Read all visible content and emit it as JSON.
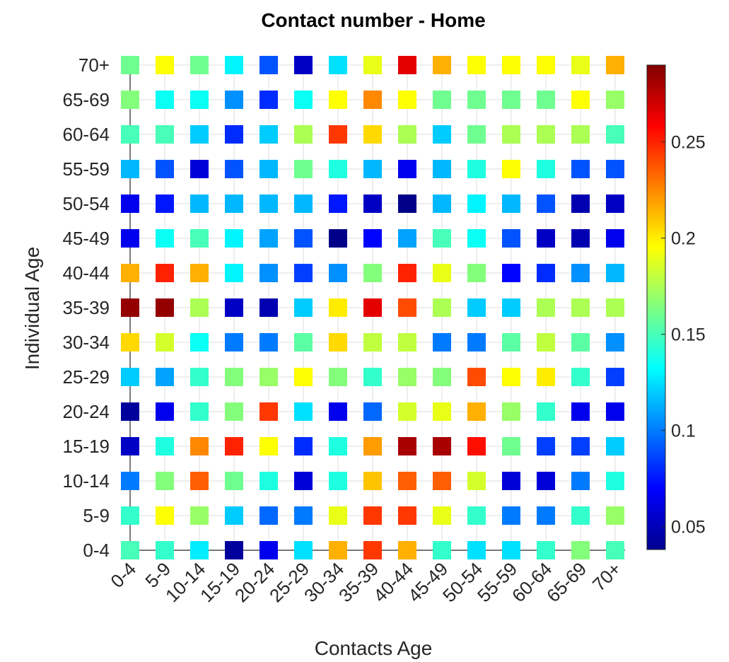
{
  "chart_data": {
    "type": "heatmap",
    "title": "Contact number - Home",
    "xlabel": "Contacts Age",
    "ylabel": "Individual Age",
    "x_categories": [
      "0-4",
      "5-9",
      "10-14",
      "15-19",
      "20-24",
      "25-29",
      "30-34",
      "35-39",
      "40-44",
      "45-49",
      "50-54",
      "55-59",
      "60-64",
      "65-69",
      "70+"
    ],
    "y_categories": [
      "0-4",
      "5-9",
      "10-14",
      "15-19",
      "20-24",
      "25-29",
      "30-34",
      "35-39",
      "40-44",
      "45-49",
      "50-54",
      "55-59",
      "60-64",
      "65-69",
      "70+"
    ],
    "colormap": "jet",
    "color_range": [
      0.038,
      0.29
    ],
    "colorbar_ticks": [
      0.05,
      0.1,
      0.15,
      0.2,
      0.25
    ],
    "colorbar_tick_labels": [
      "0.05",
      "0.1",
      "0.15",
      "0.2",
      "0.25"
    ],
    "grid": true,
    "colorbar_position": "right",
    "values": [
      [
        0.15,
        0.145,
        0.128,
        0.045,
        0.065,
        0.125,
        0.215,
        0.245,
        0.215,
        0.145,
        0.125,
        0.125,
        0.145,
        0.165,
        0.15
      ],
      [
        0.145,
        0.195,
        0.17,
        0.12,
        0.095,
        0.1,
        0.19,
        0.245,
        0.245,
        0.19,
        0.145,
        0.1,
        0.1,
        0.145,
        0.17
      ],
      [
        0.1,
        0.165,
        0.235,
        0.16,
        0.14,
        0.06,
        0.14,
        0.21,
        0.235,
        0.235,
        0.185,
        0.06,
        0.06,
        0.1,
        0.14
      ],
      [
        0.055,
        0.14,
        0.225,
        0.25,
        0.195,
        0.08,
        0.14,
        0.22,
        0.28,
        0.28,
        0.255,
        0.16,
        0.085,
        0.085,
        0.12
      ],
      [
        0.045,
        0.065,
        0.145,
        0.165,
        0.245,
        0.125,
        0.065,
        0.095,
        0.185,
        0.19,
        0.215,
        0.17,
        0.145,
        0.065,
        0.065
      ],
      [
        0.12,
        0.11,
        0.145,
        0.165,
        0.17,
        0.195,
        0.165,
        0.145,
        0.17,
        0.165,
        0.24,
        0.195,
        0.2,
        0.145,
        0.085
      ],
      [
        0.205,
        0.185,
        0.135,
        0.1,
        0.1,
        0.155,
        0.205,
        0.18,
        0.18,
        0.1,
        0.1,
        0.155,
        0.18,
        0.155,
        0.105
      ],
      [
        0.285,
        0.285,
        0.175,
        0.055,
        0.05,
        0.12,
        0.2,
        0.265,
        0.24,
        0.175,
        0.12,
        0.12,
        0.175,
        0.175,
        0.175
      ],
      [
        0.215,
        0.25,
        0.215,
        0.13,
        0.105,
        0.085,
        0.105,
        0.165,
        0.25,
        0.19,
        0.165,
        0.07,
        0.08,
        0.105,
        0.115
      ],
      [
        0.065,
        0.135,
        0.15,
        0.13,
        0.11,
        0.09,
        0.04,
        0.07,
        0.11,
        0.15,
        0.135,
        0.09,
        0.055,
        0.05,
        0.065
      ],
      [
        0.065,
        0.075,
        0.115,
        0.115,
        0.115,
        0.115,
        0.075,
        0.055,
        0.04,
        0.115,
        0.13,
        0.115,
        0.09,
        0.05,
        0.055
      ],
      [
        0.115,
        0.09,
        0.06,
        0.09,
        0.115,
        0.16,
        0.14,
        0.115,
        0.065,
        0.115,
        0.14,
        0.195,
        0.14,
        0.09,
        0.09
      ],
      [
        0.15,
        0.15,
        0.12,
        0.08,
        0.12,
        0.175,
        0.245,
        0.205,
        0.175,
        0.12,
        0.16,
        0.175,
        0.175,
        0.175,
        0.15
      ],
      [
        0.165,
        0.135,
        0.135,
        0.105,
        0.08,
        0.135,
        0.195,
        0.225,
        0.195,
        0.16,
        0.16,
        0.16,
        0.16,
        0.195,
        0.17
      ],
      [
        0.16,
        0.195,
        0.16,
        0.13,
        0.09,
        0.055,
        0.125,
        0.19,
        0.265,
        0.215,
        0.195,
        0.195,
        0.195,
        0.19,
        0.215
      ]
    ]
  }
}
